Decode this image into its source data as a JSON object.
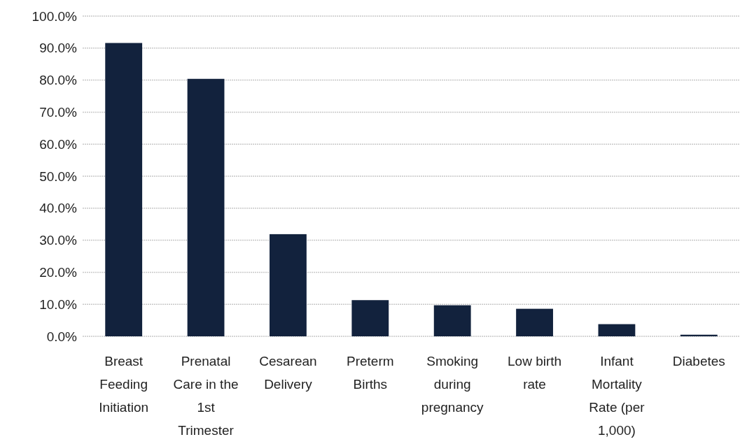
{
  "chart_data": {
    "type": "bar",
    "categories": [
      "Breast Feeding Initiation",
      "Prenatal Care in the 1st Trimester",
      "Cesarean Delivery",
      "Preterm Births",
      "Smoking during pregnancy",
      "Low birth rate",
      "Infant Mortality Rate (per 1,000)",
      "Diabetes"
    ],
    "values": [
      91.6,
      80.4,
      31.9,
      11.3,
      9.7,
      8.6,
      3.8,
      0.5
    ],
    "color": "#12223d",
    "ylim": [
      0,
      100
    ],
    "yticks": [
      {
        "value": 0,
        "label": "0.0%"
      },
      {
        "value": 10,
        "label": "10.0%"
      },
      {
        "value": 20,
        "label": "20.0%"
      },
      {
        "value": 30,
        "label": "30.0%"
      },
      {
        "value": 40,
        "label": "40.0%"
      },
      {
        "value": 50,
        "label": "50.0%"
      },
      {
        "value": 60,
        "label": "60.0%"
      },
      {
        "value": 70,
        "label": "70.0%"
      },
      {
        "value": 80,
        "label": "80.0%"
      },
      {
        "value": 90,
        "label": "90.0%"
      },
      {
        "value": 100,
        "label": "100.0%"
      }
    ],
    "grid": true
  }
}
